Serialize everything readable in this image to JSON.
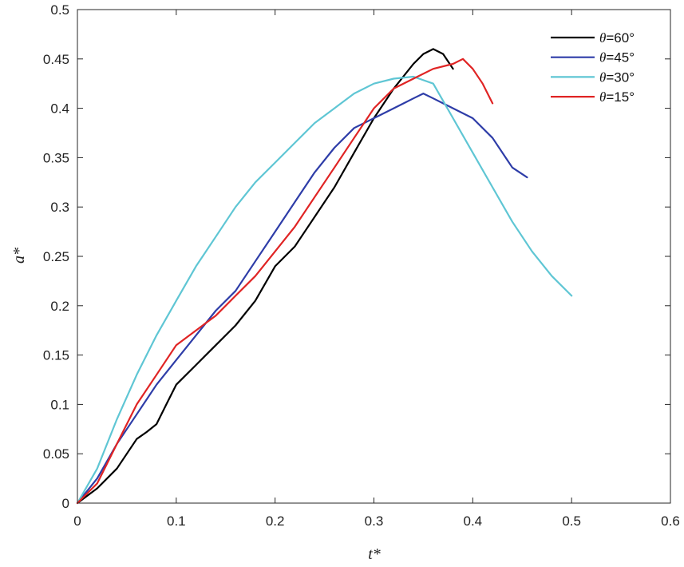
{
  "chart_data": {
    "type": "line",
    "title": "",
    "xlabel": "t*",
    "ylabel": "a*",
    "xlim": [
      0,
      0.6
    ],
    "ylim": [
      0,
      0.5
    ],
    "xticks": [
      0,
      0.1,
      0.2,
      0.3,
      0.4,
      0.5,
      0.6
    ],
    "xtick_labels": [
      "0",
      "0.1",
      "0.2",
      "0.3",
      "0.4",
      "0.5",
      "0.6"
    ],
    "yticks": [
      0,
      0.05,
      0.1,
      0.15,
      0.2,
      0.25,
      0.3,
      0.35,
      0.4,
      0.45,
      0.5
    ],
    "ytick_labels": [
      "0",
      "0.05",
      "0.1",
      "0.15",
      "0.2",
      "0.25",
      "0.3",
      "0.35",
      "0.4",
      "0.45",
      "0.5"
    ],
    "grid": false,
    "legend_position": "top-right",
    "series": [
      {
        "name": "θ=60°",
        "theta": "θ",
        "suffix": "=60°",
        "color": "#000000",
        "x": [
          0,
          0.02,
          0.04,
          0.05,
          0.06,
          0.07,
          0.08,
          0.09,
          0.1,
          0.12,
          0.14,
          0.16,
          0.18,
          0.2,
          0.22,
          0.24,
          0.26,
          0.28,
          0.3,
          0.32,
          0.34,
          0.35,
          0.36,
          0.37,
          0.38
        ],
        "y": [
          0,
          0.015,
          0.035,
          0.05,
          0.065,
          0.072,
          0.08,
          0.1,
          0.12,
          0.14,
          0.16,
          0.18,
          0.205,
          0.24,
          0.26,
          0.29,
          0.32,
          0.355,
          0.39,
          0.42,
          0.445,
          0.455,
          0.46,
          0.455,
          0.44
        ]
      },
      {
        "name": "θ=45°",
        "theta": "θ",
        "suffix": "=45°",
        "color": "#2e3da8",
        "x": [
          0,
          0.02,
          0.04,
          0.06,
          0.08,
          0.1,
          0.12,
          0.14,
          0.16,
          0.18,
          0.2,
          0.22,
          0.24,
          0.26,
          0.28,
          0.3,
          0.32,
          0.34,
          0.35,
          0.36,
          0.38,
          0.4,
          0.42,
          0.44,
          0.455
        ],
        "y": [
          0,
          0.025,
          0.06,
          0.09,
          0.12,
          0.145,
          0.17,
          0.195,
          0.215,
          0.245,
          0.275,
          0.305,
          0.335,
          0.36,
          0.38,
          0.39,
          0.4,
          0.41,
          0.415,
          0.41,
          0.4,
          0.39,
          0.37,
          0.34,
          0.33
        ]
      },
      {
        "name": "θ=30°",
        "theta": "θ",
        "suffix": "=30°",
        "color": "#5fc6d4",
        "x": [
          0,
          0.02,
          0.04,
          0.06,
          0.08,
          0.1,
          0.12,
          0.14,
          0.16,
          0.18,
          0.2,
          0.22,
          0.24,
          0.26,
          0.28,
          0.3,
          0.32,
          0.34,
          0.36,
          0.38,
          0.4,
          0.42,
          0.44,
          0.46,
          0.48,
          0.5
        ],
        "y": [
          0,
          0.035,
          0.085,
          0.13,
          0.17,
          0.205,
          0.24,
          0.27,
          0.3,
          0.325,
          0.345,
          0.365,
          0.385,
          0.4,
          0.415,
          0.425,
          0.43,
          0.432,
          0.425,
          0.39,
          0.355,
          0.32,
          0.285,
          0.255,
          0.23,
          0.21
        ]
      },
      {
        "name": "θ=15°",
        "theta": "θ",
        "suffix": "=15°",
        "color": "#e02424",
        "x": [
          0,
          0.02,
          0.04,
          0.06,
          0.08,
          0.1,
          0.12,
          0.14,
          0.16,
          0.18,
          0.2,
          0.22,
          0.24,
          0.26,
          0.28,
          0.3,
          0.32,
          0.34,
          0.36,
          0.38,
          0.39,
          0.4,
          0.41,
          0.42
        ],
        "y": [
          0,
          0.02,
          0.06,
          0.1,
          0.13,
          0.16,
          0.175,
          0.19,
          0.21,
          0.23,
          0.255,
          0.28,
          0.31,
          0.34,
          0.37,
          0.4,
          0.42,
          0.43,
          0.44,
          0.445,
          0.45,
          0.44,
          0.425,
          0.405
        ]
      }
    ]
  }
}
